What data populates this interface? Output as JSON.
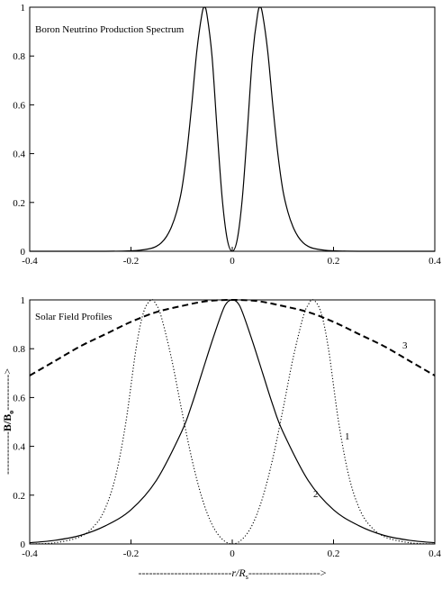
{
  "chart_data": [
    {
      "type": "line",
      "xlim": [
        -0.4,
        0.4
      ],
      "ylim": [
        0,
        1
      ],
      "x_ticks": [
        -0.4,
        -0.2,
        0,
        0.2,
        0.4
      ],
      "y_ticks": [
        0,
        0.2,
        0.4,
        0.6,
        0.8,
        1
      ],
      "x_tick_labels": [
        "-0.4",
        "-0.2",
        "0",
        "0.2",
        "0.4"
      ],
      "y_tick_labels": [
        "0",
        "0.2",
        "0.4",
        "0.6",
        "0.8",
        "1"
      ],
      "grid": false,
      "annotations": [
        {
          "text": "Boron Neutrino Production Spectrum"
        }
      ],
      "series": [
        {
          "style": "solid",
          "x": [
            -0.4,
            -0.25,
            -0.2,
            -0.18,
            -0.16,
            -0.15,
            -0.14,
            -0.13,
            -0.12,
            -0.11,
            -0.1,
            -0.09,
            -0.08,
            -0.07,
            -0.06,
            -0.055,
            -0.05,
            -0.04,
            -0.03,
            -0.02,
            -0.01,
            0,
            0.01,
            0.02,
            0.03,
            0.04,
            0.05,
            0.055,
            0.06,
            0.07,
            0.08,
            0.09,
            0.1,
            0.11,
            0.12,
            0.13,
            0.14,
            0.15,
            0.16,
            0.18,
            0.2,
            0.25,
            0.4
          ],
          "y": [
            0,
            0,
            0.002,
            0.005,
            0.012,
            0.02,
            0.035,
            0.06,
            0.1,
            0.16,
            0.25,
            0.4,
            0.6,
            0.82,
            0.97,
            1.0,
            0.97,
            0.8,
            0.5,
            0.22,
            0.05,
            0.0,
            0.05,
            0.22,
            0.5,
            0.8,
            0.97,
            1.0,
            0.97,
            0.82,
            0.6,
            0.4,
            0.25,
            0.16,
            0.1,
            0.06,
            0.035,
            0.02,
            0.012,
            0.005,
            0.002,
            0,
            0
          ]
        }
      ]
    },
    {
      "type": "line",
      "xlim": [
        -0.4,
        0.4
      ],
      "ylim": [
        0,
        1
      ],
      "x_ticks": [
        -0.4,
        -0.2,
        0,
        0.2,
        0.4
      ],
      "y_ticks": [
        0,
        0.2,
        0.4,
        0.6,
        0.8,
        1
      ],
      "x_tick_labels": [
        "-0.4",
        "-0.2",
        "0",
        "0.2",
        "0.4"
      ],
      "y_tick_labels": [
        "0",
        "0.2",
        "0.4",
        "0.6",
        "0.8",
        "1"
      ],
      "xlabel_main": "r/R",
      "xlabel_sub": "s",
      "xlabel_arrow_left": "--------------------------",
      "xlabel_arrow_right": "-------------------->",
      "ylabel_main": "B/B",
      "ylabel_sub": "o",
      "ylabel_arrow_left": "------------",
      "ylabel_arrow_right": "---------->",
      "grid": false,
      "annotations": [
        {
          "text": "Solar Field Profiles"
        }
      ],
      "series": [
        {
          "style": "dotted",
          "curve_label": "1",
          "x": [
            -0.4,
            -0.35,
            -0.3,
            -0.27,
            -0.25,
            -0.23,
            -0.21,
            -0.19,
            -0.175,
            -0.16,
            -0.15,
            -0.14,
            -0.12,
            -0.1,
            -0.08,
            -0.06,
            -0.04,
            -0.02,
            0,
            0.02,
            0.04,
            0.06,
            0.08,
            0.1,
            0.12,
            0.14,
            0.15,
            0.16,
            0.175,
            0.19,
            0.21,
            0.23,
            0.25,
            0.27,
            0.3,
            0.35,
            0.4
          ],
          "y": [
            0,
            0.005,
            0.03,
            0.08,
            0.15,
            0.28,
            0.5,
            0.8,
            0.95,
            1.0,
            0.98,
            0.93,
            0.76,
            0.55,
            0.35,
            0.19,
            0.08,
            0.02,
            0,
            0.02,
            0.08,
            0.19,
            0.35,
            0.55,
            0.76,
            0.93,
            0.98,
            1.0,
            0.95,
            0.8,
            0.5,
            0.28,
            0.15,
            0.08,
            0.03,
            0.005,
            0
          ]
        },
        {
          "style": "solid",
          "curve_label": "2",
          "x": [
            -0.4,
            -0.35,
            -0.3,
            -0.25,
            -0.2,
            -0.15,
            -0.1,
            -0.08,
            -0.06,
            -0.04,
            -0.02,
            -0.01,
            0,
            0.01,
            0.02,
            0.04,
            0.06,
            0.08,
            0.1,
            0.15,
            0.2,
            0.25,
            0.3,
            0.35,
            0.4
          ],
          "y": [
            0.005,
            0.015,
            0.035,
            0.075,
            0.14,
            0.26,
            0.46,
            0.57,
            0.7,
            0.83,
            0.95,
            0.99,
            1.0,
            0.99,
            0.95,
            0.83,
            0.7,
            0.57,
            0.46,
            0.26,
            0.14,
            0.075,
            0.035,
            0.015,
            0.005
          ]
        },
        {
          "style": "dashed",
          "curve_label": "3",
          "x": [
            -0.4,
            -0.35,
            -0.3,
            -0.25,
            -0.2,
            -0.15,
            -0.1,
            -0.05,
            0,
            0.05,
            0.1,
            0.15,
            0.2,
            0.25,
            0.3,
            0.35,
            0.4
          ],
          "y": [
            0.69,
            0.75,
            0.81,
            0.86,
            0.91,
            0.95,
            0.975,
            0.995,
            1.0,
            0.995,
            0.975,
            0.95,
            0.91,
            0.86,
            0.81,
            0.75,
            0.69
          ]
        }
      ]
    }
  ]
}
